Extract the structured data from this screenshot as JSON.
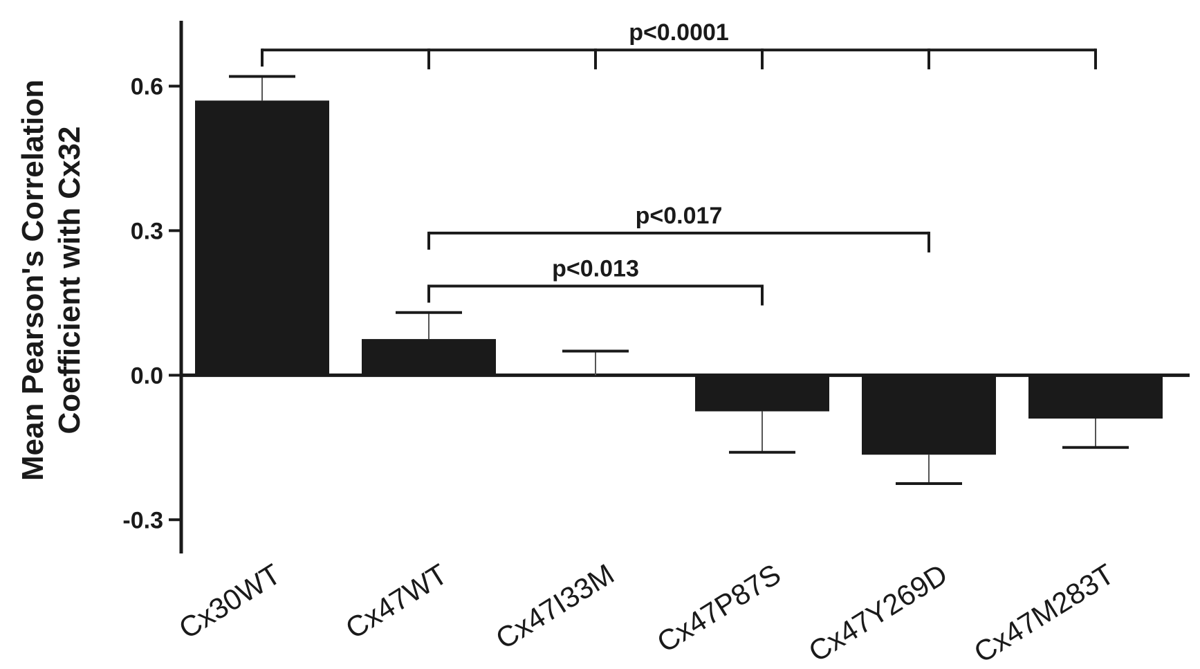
{
  "chart_data": {
    "type": "bar",
    "title": "",
    "xlabel": "",
    "ylabel": [
      "Mean Pearson's Correlation",
      "Coefficient with Cx32"
    ],
    "ylim": [
      -0.37,
      0.75
    ],
    "yticks": [
      {
        "value": 0.6,
        "label": "0.6"
      },
      {
        "value": 0.3,
        "label": "0.3"
      },
      {
        "value": 0.0,
        "label": "0.0"
      },
      {
        "value": -0.3,
        "label": "-0.3"
      }
    ],
    "categories": [
      "Cx30WT",
      "Cx47WT",
      "Cx47I33M",
      "Cx47P87S",
      "Cx47Y269D",
      "Cx47M283T"
    ],
    "values": [
      0.57,
      0.075,
      0.0,
      -0.075,
      -0.165,
      -0.09
    ],
    "errors": [
      0.05,
      0.055,
      0.05,
      0.085,
      0.06,
      0.06
    ],
    "bar_color": "#1a1a1a",
    "grid": false,
    "significance": [
      {
        "label": "p<0.0001",
        "from": 0,
        "to": [
          1,
          2,
          3,
          4,
          5
        ],
        "y": 0.675
      },
      {
        "label": "p<0.017",
        "from": 1,
        "to": [
          4
        ],
        "y": 0.295
      },
      {
        "label": "p<0.013",
        "from": 1,
        "to": [
          3
        ],
        "y": 0.185
      }
    ]
  }
}
